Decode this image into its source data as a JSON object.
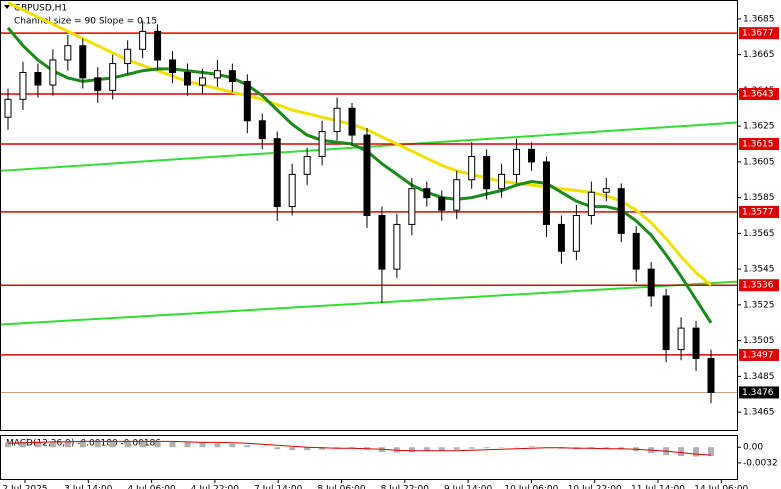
{
  "chart_data": {
    "type": "candlestick",
    "title": "GBPUSD,H1",
    "subtitle": "Channel size = 90 Slope = 0.15",
    "x_labels": [
      "2 Jul 2025",
      "3 Jul 14:00",
      "4 Jul 06:00",
      "4 Jul 22:00",
      "7 Jul 14:00",
      "8 Jul 06:00",
      "8 Jul 22:00",
      "9 Jul 14:00",
      "10 Jul 06:00",
      "10 Jul 22:00",
      "11 Jul 14:00",
      "14 Jul 06:00"
    ],
    "open": [
      1.363,
      1.364,
      1.3655,
      1.3648,
      1.3662,
      1.367,
      1.3652,
      1.3645,
      1.366,
      1.3668,
      1.3678,
      1.3662,
      1.3655,
      1.3648,
      1.3652,
      1.3656,
      1.365,
      1.3628,
      1.3618,
      1.358,
      1.3598,
      1.3608,
      1.3622,
      1.3635,
      1.362,
      1.3575,
      1.3545,
      1.357,
      1.359,
      1.3585,
      1.3578,
      1.3595,
      1.3608,
      1.359,
      1.3598,
      1.3612,
      1.3605,
      1.357,
      1.3555,
      1.3575,
      1.3588,
      1.359,
      1.3565,
      1.3545,
      1.353,
      1.35,
      1.3512,
      1.3495
    ],
    "high": [
      1.3646,
      1.3661,
      1.366,
      1.3668,
      1.3676,
      1.3674,
      1.3658,
      1.3665,
      1.3673,
      1.3684,
      1.3682,
      1.3667,
      1.366,
      1.3657,
      1.3662,
      1.366,
      1.3654,
      1.3632,
      1.3622,
      1.3604,
      1.3613,
      1.3628,
      1.3641,
      1.3638,
      1.3624,
      1.358,
      1.3576,
      1.3596,
      1.3594,
      1.3589,
      1.36,
      1.3616,
      1.3612,
      1.3604,
      1.3618,
      1.3616,
      1.3608,
      1.3575,
      1.3581,
      1.3594,
      1.3596,
      1.3593,
      1.3569,
      1.3549,
      1.3534,
      1.3518,
      1.3516,
      1.35
    ],
    "low": [
      1.3623,
      1.3634,
      1.3641,
      1.3642,
      1.3656,
      1.3646,
      1.3638,
      1.364,
      1.3654,
      1.3663,
      1.3656,
      1.3649,
      1.3642,
      1.3643,
      1.3647,
      1.3644,
      1.3621,
      1.3612,
      1.3572,
      1.3575,
      1.3592,
      1.3603,
      1.3617,
      1.3614,
      1.3568,
      1.3526,
      1.354,
      1.3564,
      1.358,
      1.3572,
      1.3573,
      1.359,
      1.3584,
      1.3585,
      1.3593,
      1.36,
      1.3563,
      1.3548,
      1.355,
      1.357,
      1.3583,
      1.356,
      1.3538,
      1.3524,
      1.3493,
      1.3494,
      1.3488,
      1.347
    ],
    "close": [
      1.364,
      1.3655,
      1.3648,
      1.3662,
      1.367,
      1.3652,
      1.3645,
      1.366,
      1.3668,
      1.3678,
      1.3662,
      1.3655,
      1.3648,
      1.3652,
      1.3656,
      1.365,
      1.3628,
      1.3618,
      1.358,
      1.3598,
      1.3608,
      1.3622,
      1.3635,
      1.362,
      1.3575,
      1.3545,
      1.357,
      1.359,
      1.3585,
      1.3578,
      1.3595,
      1.3608,
      1.359,
      1.3598,
      1.3612,
      1.3605,
      1.357,
      1.3555,
      1.3575,
      1.3588,
      1.359,
      1.3565,
      1.3545,
      1.353,
      1.35,
      1.3512,
      1.3495,
      1.3476
    ],
    "series": [
      {
        "color": "#f0e000",
        "values": [
          1.3694,
          1.369,
          1.3686,
          1.3682,
          1.3678,
          1.3674,
          1.367,
          1.3666,
          1.3662,
          1.3659,
          1.3656,
          1.3653,
          1.365,
          1.3648,
          1.3646,
          1.3644,
          1.3642,
          1.364,
          1.3637,
          1.3634,
          1.3632,
          1.363,
          1.3628,
          1.3626,
          1.3623,
          1.3619,
          1.3615,
          1.3611,
          1.3607,
          1.3603,
          1.36,
          1.3598,
          1.3596,
          1.3594,
          1.3593,
          1.3592,
          1.3591,
          1.359,
          1.3589,
          1.3588,
          1.3586,
          1.3583,
          1.3578,
          1.3571,
          1.3562,
          1.3552,
          1.3543,
          1.3536
        ]
      },
      {
        "color": "#1a8a1a",
        "values": [
          1.368,
          1.367,
          1.3662,
          1.3656,
          1.3652,
          1.365,
          1.3651,
          1.3652,
          1.3654,
          1.3656,
          1.3657,
          1.3657,
          1.3656,
          1.3655,
          1.3654,
          1.3652,
          1.3648,
          1.3642,
          1.3634,
          1.3626,
          1.362,
          1.3617,
          1.3616,
          1.3615,
          1.3611,
          1.3604,
          1.3598,
          1.3592,
          1.3588,
          1.3585,
          1.3584,
          1.3585,
          1.3587,
          1.3589,
          1.3592,
          1.3594,
          1.3593,
          1.3588,
          1.3583,
          1.358,
          1.358,
          1.3578,
          1.3572,
          1.3564,
          1.3553,
          1.3541,
          1.3528,
          1.3515
        ]
      }
    ],
    "channel_color": "#33dd33",
    "channel_upper": [
      1.36,
      1.3627
    ],
    "channel_lower": [
      1.3514,
      1.3538
    ],
    "levels": [
      1.3677,
      1.3643,
      1.3615,
      1.3577,
      1.3536,
      1.3497
    ],
    "level_color": "#e00000",
    "current_price": 1.3476,
    "ylim": [
      1.3455,
      1.3695
    ],
    "yticks": [
      1.3685,
      1.3665,
      1.3645,
      1.3625,
      1.3605,
      1.3585,
      1.3565,
      1.3545,
      1.3525,
      1.3505,
      1.3485,
      1.3465
    ],
    "macd": {
      "label": "MACD(12,26,9) -0.00180 -0.00186",
      "hist": [
        0.001,
        0.0011,
        0.0012,
        0.0012,
        0.0013,
        0.0013,
        0.0012,
        0.0012,
        0.0012,
        0.0013,
        0.0012,
        0.0011,
        0.001,
        0.0009,
        0.0008,
        0.0007,
        0.0004,
        0.0001,
        -0.0004,
        -0.0006,
        -0.0006,
        -0.0005,
        -0.0003,
        -0.0002,
        -0.0005,
        -0.001,
        -0.0011,
        -0.001,
        -0.0008,
        -0.0007,
        -0.0005,
        -0.0003,
        -0.0002,
        -0.0001,
        0.0001,
        0.0002,
        0.0,
        -0.0003,
        -0.0004,
        -0.0004,
        -0.0003,
        -0.0005,
        -0.0008,
        -0.0012,
        -0.0016,
        -0.0018,
        -0.0019,
        -0.0018
      ],
      "signal": [
        0.0008,
        0.0009,
        0.001,
        0.0011,
        0.0011,
        0.0012,
        0.0012,
        0.0012,
        0.0012,
        0.0012,
        0.0012,
        0.0012,
        0.0011,
        0.001,
        0.001,
        0.0009,
        0.0008,
        0.0006,
        0.0004,
        0.0002,
        0.0,
        -0.0001,
        -0.0002,
        -0.0002,
        -0.0003,
        -0.0004,
        -0.0006,
        -0.0007,
        -0.0007,
        -0.0007,
        -0.0007,
        -0.0006,
        -0.0005,
        -0.0004,
        -0.0003,
        -0.0002,
        -0.0001,
        -0.0001,
        -0.0002,
        -0.0002,
        -0.0003,
        -0.0003,
        -0.0004,
        -0.0006,
        -0.0008,
        -0.0011,
        -0.0014,
        -0.0016
      ],
      "hist_color": "#b0b0b0",
      "signal_color": "#e00000",
      "ylim": [
        -0.0065,
        0.0023
      ],
      "yticks": [
        {
          "value": 0,
          "label": "0.00"
        },
        -0.0032
      ]
    }
  }
}
